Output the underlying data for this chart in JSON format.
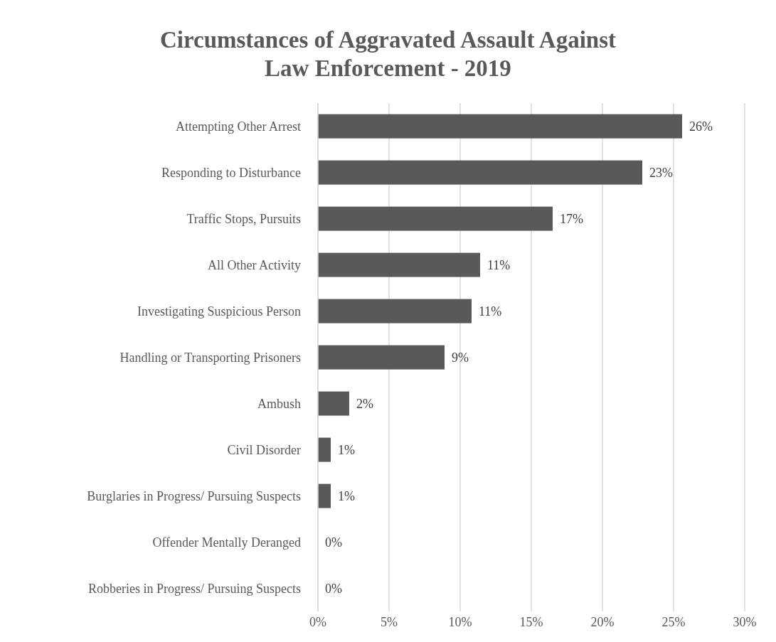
{
  "chart_data": {
    "type": "bar",
    "orientation": "horizontal",
    "title": "Circumstances of Aggravated Assault Against Law Enforcement - 2019",
    "categories": [
      "Attempting Other Arrest",
      "Responding to Disturbance",
      "Traffic Stops, Pursuits",
      "All Other Activity",
      "Investigating Suspicious Person",
      "Handling or Transporting Prisoners",
      "Ambush",
      "Civil Disorder",
      "Burglaries in Progress/ Pursuing Suspects",
      "Offender Mentally Deranged",
      "Robberies in Progress/ Pursuing Suspects"
    ],
    "values": [
      25.6,
      22.8,
      16.5,
      11.4,
      10.8,
      8.9,
      2.2,
      0.9,
      0.9,
      0,
      0
    ],
    "value_labels": [
      "26%",
      "23%",
      "17%",
      "11%",
      "11%",
      "9%",
      "2%",
      "1%",
      "1%",
      "0%",
      "0%"
    ],
    "color": "#595959",
    "xlim": [
      0,
      30
    ],
    "xticks": [
      {
        "value": 0,
        "label": "0%"
      },
      {
        "value": 5,
        "label": "5%"
      },
      {
        "value": 10,
        "label": "10%"
      },
      {
        "value": 15,
        "label": "15%"
      },
      {
        "value": 20,
        "label": "20%"
      },
      {
        "value": 25,
        "label": "25%"
      },
      {
        "value": 30,
        "label": "30%"
      }
    ],
    "grid": "x",
    "legend": false
  }
}
